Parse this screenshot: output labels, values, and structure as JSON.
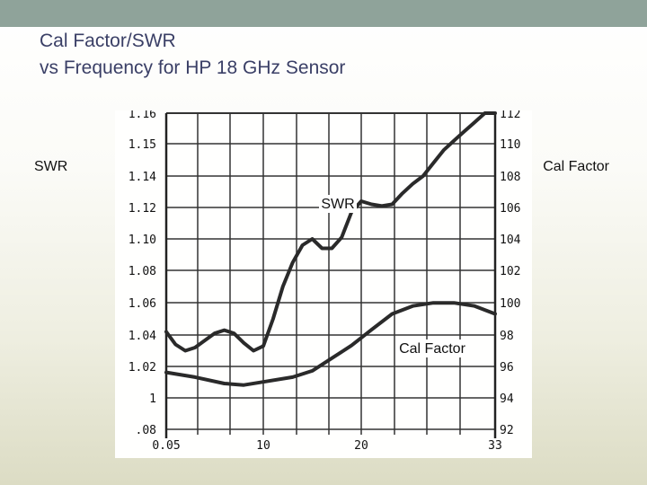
{
  "slide": {
    "title_line1": "Cal Factor/SWR",
    "title_line2": "vs Frequency for HP  18 GHz Sensor",
    "left_axis_label": "SWR",
    "right_axis_label": "Cal Factor"
  },
  "colors": {
    "top_bar": "#8fa39a",
    "title": "#3a3f66",
    "curve": "#2a2a2a"
  },
  "chart_data": {
    "type": "line",
    "x_ticks": [
      "0.05",
      "10",
      "20",
      "33"
    ],
    "left_ticks": [
      "1.16",
      "1.15",
      "1.14",
      "1.12",
      "1.10",
      "1.08",
      "1.06",
      "1.04",
      "1.02",
      "1",
      ".08"
    ],
    "right_ticks": [
      "112",
      "110",
      "108",
      "106",
      "104",
      "102",
      "100",
      "98",
      "96",
      "94",
      "92"
    ],
    "grid": true,
    "series": [
      {
        "name": "SWR",
        "axis": "left",
        "x": [
          0.05,
          1,
          2,
          3,
          5,
          6,
          7,
          8,
          9,
          10,
          11,
          12,
          13,
          14,
          15,
          16,
          17,
          18,
          19,
          20,
          21,
          22,
          23,
          24,
          25,
          26,
          27,
          28,
          29,
          30,
          31,
          32,
          33
        ],
        "y": [
          1.042,
          1.034,
          1.03,
          1.032,
          1.041,
          1.043,
          1.041,
          1.035,
          1.03,
          1.033,
          1.05,
          1.07,
          1.085,
          1.096,
          1.1,
          1.094,
          1.094,
          1.101,
          1.117,
          1.124,
          1.122,
          1.121,
          1.122,
          1.129,
          1.135,
          1.14,
          1.144,
          1.148,
          1.151,
          1.154,
          1.157,
          1.16,
          1.162
        ]
      },
      {
        "name": "Cal Factor",
        "axis": "right",
        "x": [
          0.05,
          3,
          6,
          8,
          10,
          13,
          15,
          17,
          19,
          21,
          23,
          25,
          27,
          29,
          31,
          33
        ],
        "y": [
          95.6,
          95.3,
          94.9,
          94.8,
          95.0,
          95.3,
          95.7,
          96.5,
          97.3,
          98.3,
          99.3,
          99.8,
          100.0,
          100.0,
          99.8,
          99.3
        ]
      }
    ],
    "annotations": [
      "SWR",
      "Cal Factor"
    ]
  }
}
